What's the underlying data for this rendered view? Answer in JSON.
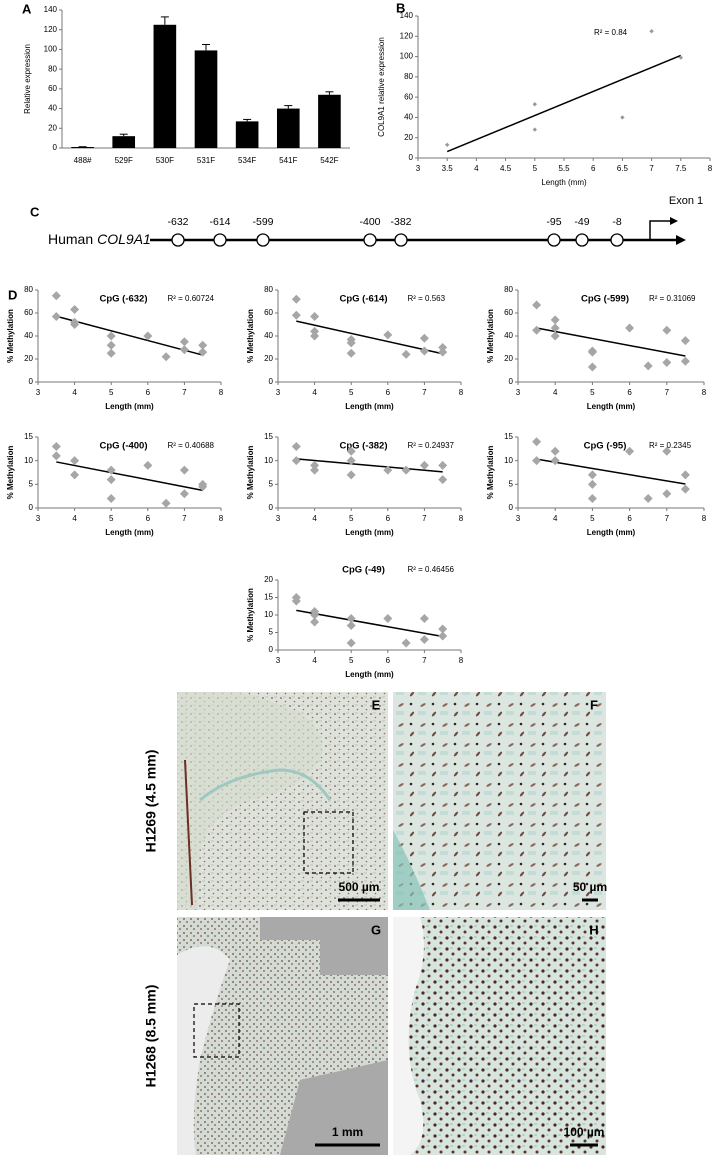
{
  "chart_data": [
    {
      "type": "bar",
      "panel": "A",
      "categories": [
        "488#",
        "529F",
        "530F",
        "531F",
        "534F",
        "541F",
        "542F"
      ],
      "values": [
        1,
        12,
        125,
        99,
        27,
        40,
        54
      ],
      "errors": [
        0.3,
        2,
        8,
        6,
        2,
        3,
        3
      ],
      "color": "#000000",
      "ylabel": "Relative expression",
      "ylim": [
        0,
        140
      ],
      "yticks": [
        0,
        20,
        40,
        60,
        80,
        100,
        120,
        140
      ]
    },
    {
      "type": "scatter",
      "panel": "B",
      "x": [
        3.5,
        5,
        5,
        6.5,
        7,
        7.5
      ],
      "values": [
        13,
        53,
        28,
        40,
        125,
        99
      ],
      "color": "#999999",
      "trendline": true,
      "annotation": "R² = 0.84",
      "xlabel": "Length (mm)",
      "ylabel": "COL9A1 relative expression",
      "xlim": [
        3,
        8
      ],
      "xticks": [
        3,
        3.5,
        4,
        4.5,
        5,
        5.5,
        6,
        6.5,
        7,
        7.5,
        8
      ],
      "ylim": [
        0,
        140
      ],
      "yticks": [
        0,
        20,
        40,
        60,
        80,
        100,
        120,
        140
      ]
    },
    {
      "type": "scatter",
      "panel": "D",
      "title": "CpG (-632)",
      "annotation": "R² = 0.60724",
      "x": [
        3.5,
        3.5,
        4,
        4,
        4,
        5,
        5,
        5,
        6,
        6.5,
        7,
        7,
        7.5,
        7.5
      ],
      "values": [
        75,
        57,
        63,
        52,
        50,
        40,
        32,
        25,
        40,
        22,
        35,
        28,
        32,
        26
      ],
      "color": "#a6a6a6",
      "trendline": true,
      "xlabel": "Length (mm)",
      "ylabel": "% Methylation",
      "xlim": [
        3,
        8
      ],
      "xticks": [
        3,
        4,
        5,
        6,
        7,
        8
      ],
      "ylim": [
        0,
        80
      ],
      "yticks": [
        0,
        20,
        40,
        60,
        80
      ]
    },
    {
      "type": "scatter",
      "title": "CpG (-614)",
      "annotation": "R² = 0.563",
      "x": [
        3.5,
        3.5,
        4,
        4,
        4,
        5,
        5,
        5,
        6,
        6.5,
        7,
        7,
        7.5,
        7.5
      ],
      "values": [
        72,
        58,
        57,
        44,
        40,
        37,
        34,
        25,
        41,
        24,
        38,
        27,
        30,
        26
      ],
      "color": "#a6a6a6",
      "trendline": true,
      "xlabel": "Length (mm)",
      "ylabel": "% Methylation",
      "xlim": [
        3,
        8
      ],
      "xticks": [
        3,
        4,
        5,
        6,
        7,
        8
      ],
      "ylim": [
        0,
        80
      ],
      "yticks": [
        0,
        20,
        40,
        60,
        80
      ]
    },
    {
      "type": "scatter",
      "title": "CpG (-599)",
      "annotation": "R² = 0.31069",
      "x": [
        3.5,
        3.5,
        4,
        4,
        4,
        5,
        5,
        5,
        6,
        6.5,
        7,
        7,
        7.5,
        7.5
      ],
      "values": [
        67,
        45,
        54,
        47,
        40,
        27,
        26,
        13,
        47,
        14,
        45,
        17,
        36,
        18
      ],
      "color": "#a6a6a6",
      "trendline": true,
      "xlabel": "Length (mm)",
      "ylabel": "% Methylation",
      "xlim": [
        3,
        8
      ],
      "xticks": [
        3,
        4,
        5,
        6,
        7,
        8
      ],
      "ylim": [
        0,
        80
      ],
      "yticks": [
        0,
        20,
        40,
        60,
        80
      ]
    },
    {
      "type": "scatter",
      "title": "CpG (-400)",
      "annotation": "R² = 0.40688",
      "x": [
        3.5,
        3.5,
        4,
        4,
        5,
        5,
        5,
        6,
        6.5,
        7,
        7,
        7.5,
        7.5
      ],
      "values": [
        13,
        11,
        10,
        7,
        8,
        6,
        2,
        9,
        1,
        8,
        3,
        5,
        4.5
      ],
      "color": "#a6a6a6",
      "trendline": true,
      "xlabel": "Length (mm)",
      "ylabel": "% Methylation",
      "xlim": [
        3,
        8
      ],
      "xticks": [
        3,
        4,
        5,
        6,
        7,
        8
      ],
      "ylim": [
        0,
        15
      ],
      "yticks": [
        0,
        5,
        10,
        15
      ]
    },
    {
      "type": "scatter",
      "title": "CpG (-382)",
      "annotation": "R² = 0.24937",
      "x": [
        3.5,
        3.5,
        4,
        4,
        5,
        5,
        5,
        6,
        6.5,
        7,
        7.5,
        7.5
      ],
      "values": [
        13,
        10,
        9,
        8,
        12,
        10,
        7,
        8,
        8,
        9,
        9,
        6
      ],
      "color": "#a6a6a6",
      "trendline": true,
      "xlabel": "Length (mm)",
      "ylabel": "% Methylation",
      "xlim": [
        3,
        8
      ],
      "xticks": [
        3,
        4,
        5,
        6,
        7,
        8
      ],
      "ylim": [
        0,
        15
      ],
      "yticks": [
        0,
        5,
        10,
        15
      ]
    },
    {
      "type": "scatter",
      "title": "CpG (-95)",
      "annotation": "R² = 0.2345",
      "x": [
        3.5,
        3.5,
        4,
        4,
        5,
        5,
        5,
        6,
        6.5,
        7,
        7,
        7.5,
        7.5
      ],
      "values": [
        14,
        10,
        12,
        10,
        7,
        5,
        2,
        12,
        2,
        12,
        3,
        7,
        4
      ],
      "color": "#a6a6a6",
      "trendline": true,
      "xlabel": "Length (mm)",
      "ylabel": "% Methylation",
      "xlim": [
        3,
        8
      ],
      "xticks": [
        3,
        4,
        5,
        6,
        7,
        8
      ],
      "ylim": [
        0,
        15
      ],
      "yticks": [
        0,
        5,
        10,
        15
      ]
    },
    {
      "type": "scatter",
      "title": "CpG (-49)",
      "annotation": "R² = 0.46456",
      "x": [
        3.5,
        3.5,
        4,
        4,
        4,
        5,
        5,
        5,
        6,
        6.5,
        7,
        7,
        7.5,
        7.5
      ],
      "values": [
        15,
        14,
        11,
        10,
        8,
        9,
        7,
        2,
        9,
        2,
        9,
        3,
        6,
        4
      ],
      "color": "#a6a6a6",
      "trendline": true,
      "xlabel": "Length (mm)",
      "ylabel": "% Methylation",
      "xlim": [
        3,
        8
      ],
      "xticks": [
        3,
        4,
        5,
        6,
        7,
        8
      ],
      "ylim": [
        0,
        20
      ],
      "yticks": [
        0,
        5,
        10,
        15,
        20
      ]
    }
  ],
  "gene_map": {
    "panel": "C",
    "organism": "Human",
    "gene": "COL9A1",
    "sites": [
      "-632",
      "-614",
      "-599",
      "-400",
      "-382",
      "-95",
      "-49",
      "-8"
    ],
    "exon": "Exon 1"
  },
  "micrographs": {
    "rows": [
      {
        "label": "H1269 (4.5 mm)",
        "images": [
          {
            "panel": "E",
            "scale_bar": "500 µm"
          },
          {
            "panel": "F",
            "scale_bar": "50 µm"
          }
        ]
      },
      {
        "label": "H1268 (8.5 mm)",
        "images": [
          {
            "panel": "G",
            "scale_bar": "1 mm"
          },
          {
            "panel": "H",
            "scale_bar": "100 µm"
          }
        ]
      }
    ]
  }
}
